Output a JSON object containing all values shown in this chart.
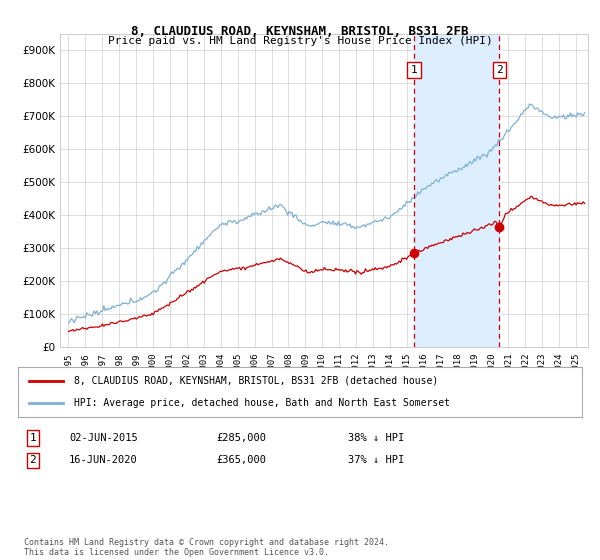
{
  "title": "8, CLAUDIUS ROAD, KEYNSHAM, BRISTOL, BS31 2FB",
  "subtitle": "Price paid vs. HM Land Registry's House Price Index (HPI)",
  "ylim": [
    0,
    950000
  ],
  "xlim_start": 1994.5,
  "xlim_end": 2025.7,
  "sale1_date": 2015.42,
  "sale1_price": 285000,
  "sale2_date": 2020.46,
  "sale2_price": 365000,
  "legend_red": "8, CLAUDIUS ROAD, KEYNSHAM, BRISTOL, BS31 2FB (detached house)",
  "legend_blue": "HPI: Average price, detached house, Bath and North East Somerset",
  "annotation1_text": "02-JUN-2015",
  "annotation1_price": "£285,000",
  "annotation1_hpi": "38% ↓ HPI",
  "annotation2_text": "16-JUN-2020",
  "annotation2_price": "£365,000",
  "annotation2_hpi": "37% ↓ HPI",
  "footer": "Contains HM Land Registry data © Crown copyright and database right 2024.\nThis data is licensed under the Open Government Licence v3.0.",
  "line_red_color": "#cc0000",
  "line_blue_color": "#7eb0d4",
  "shade_color": "#dceeff",
  "vline_color": "#cc0000",
  "box_color": "#cc0000",
  "title_fontsize": 9,
  "subtitle_fontsize": 8
}
